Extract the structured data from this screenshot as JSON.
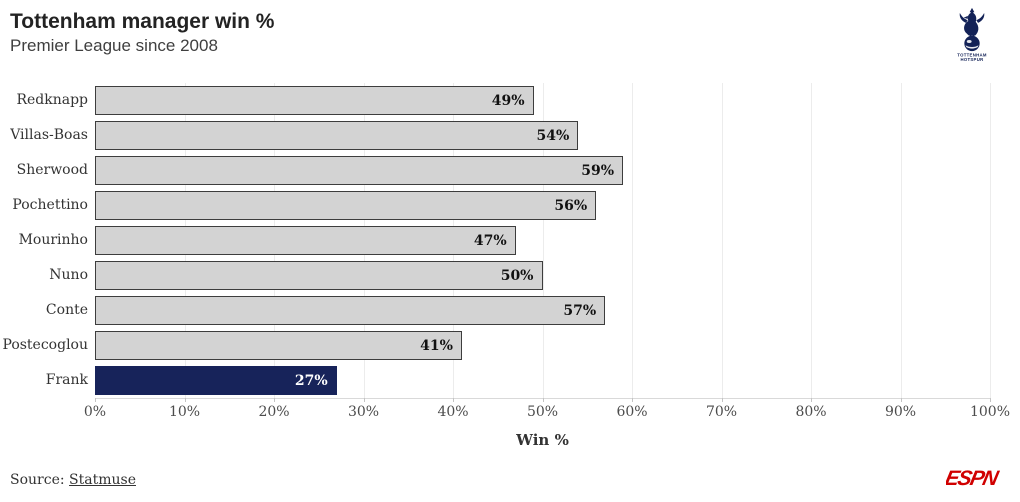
{
  "header": {
    "title": "Tottenham manager win %",
    "subtitle": "Premier League since 2008"
  },
  "logo": {
    "name": "Tottenham Hotspur crest",
    "text_line1": "TOTTENHAM",
    "text_line2": "HOTSPUR"
  },
  "chart_data": {
    "type": "bar",
    "orientation": "horizontal",
    "categories": [
      "Redknapp",
      "Villas-Boas",
      "Sherwood",
      "Pochettino",
      "Mourinho",
      "Nuno",
      "Conte",
      "Postecoglou",
      "Frank"
    ],
    "values": [
      49,
      54,
      59,
      56,
      47,
      50,
      57,
      41,
      27
    ],
    "value_labels": [
      "49%",
      "54%",
      "59%",
      "56%",
      "47%",
      "50%",
      "57%",
      "41%",
      "27%"
    ],
    "highlight_index": 8,
    "title": "Tottenham manager win %",
    "subtitle": "Premier League since 2008",
    "xlabel": "Win %",
    "ylabel": "",
    "xlim": [
      0,
      100
    ],
    "x_ticks": [
      "0%",
      "10%",
      "20%",
      "30%",
      "40%",
      "50%",
      "60%",
      "70%",
      "80%",
      "90%",
      "100%"
    ],
    "grid": true,
    "legend": false,
    "colors": {
      "bar_fill": "#d3d3d3",
      "bar_border": "#3d3d3d",
      "highlight_fill": "#17235a",
      "highlight_text": "#ffffff",
      "gridline": "#ececec",
      "espn_red": "#d00000",
      "navy": "#132257"
    }
  },
  "footer": {
    "source_prefix": "Source: ",
    "source_link": "Statmuse",
    "espn_logo": "ESPN"
  }
}
